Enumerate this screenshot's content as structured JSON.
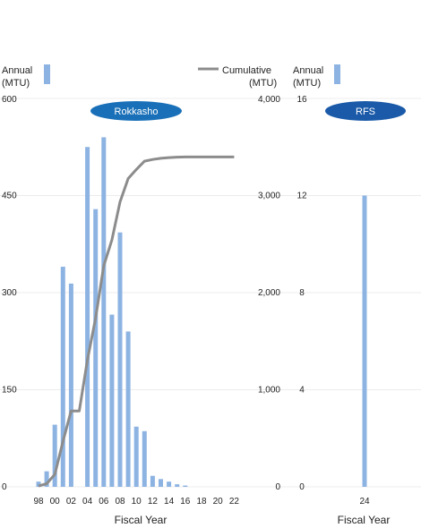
{
  "legend": {
    "annual_left_line1": "Annual",
    "annual_left_line2": "(MTU)",
    "cumulative_line1": "Cumulative",
    "cumulative_line2": "(MTU)",
    "annual_right_line1": "Annual",
    "annual_right_line2": "(MTU)"
  },
  "colors": {
    "bar": "#8db3e2",
    "cumulative_line": "#8c8c8c",
    "pill_left": "#1a70b8",
    "pill_right": "#1a5aa8",
    "grid": "#ececec"
  },
  "chart_data": [
    {
      "type": "bar",
      "panel_label": "Rokkasho",
      "xlabel": "Fiscal Year",
      "x_tick_labels": [
        "98",
        "00",
        "02",
        "04",
        "06",
        "08",
        "10",
        "12",
        "14",
        "16",
        "18",
        "20",
        "22"
      ],
      "y_left_ticks": [
        "0",
        "150",
        "300",
        "450",
        "600"
      ],
      "y_right_ticks": [
        "0",
        "1,000",
        "2,000",
        "3,000",
        "4,000"
      ],
      "ylim_left": [
        0,
        600
      ],
      "ylim_right": [
        0,
        4000
      ],
      "years": [
        1998,
        1999,
        2000,
        2001,
        2002,
        2003,
        2004,
        2005,
        2006,
        2007,
        2008,
        2009,
        2010,
        2011,
        2012,
        2013,
        2014,
        2015,
        2016,
        2017,
        2018,
        2019,
        2020,
        2021,
        2022
      ],
      "series": [
        {
          "name": "Annual",
          "axis": "left",
          "values": [
            8,
            24,
            96,
            340,
            314,
            0,
            525,
            429,
            540,
            266,
            393,
            240,
            93,
            86,
            17,
            12,
            8,
            4,
            2,
            0,
            0,
            0,
            0,
            0,
            0
          ]
        },
        {
          "name": "Cumulative",
          "axis": "right",
          "type": "line",
          "values": [
            8,
            32,
            128,
            468,
            782,
            782,
            1307,
            1736,
            2276,
            2542,
            2935,
            3175,
            3268,
            3354,
            3371,
            3383,
            3391,
            3395,
            3397,
            3397,
            3397,
            3397,
            3397,
            3397,
            3397
          ]
        }
      ]
    },
    {
      "type": "bar",
      "panel_label": "RFS",
      "xlabel": "Fiscal Year",
      "x_tick_labels": [
        "24"
      ],
      "y_ticks": [
        "0",
        "4",
        "8",
        "12",
        "16"
      ],
      "ylim": [
        0,
        16
      ],
      "series": [
        {
          "name": "Annual",
          "values": [
            12
          ]
        }
      ]
    }
  ]
}
